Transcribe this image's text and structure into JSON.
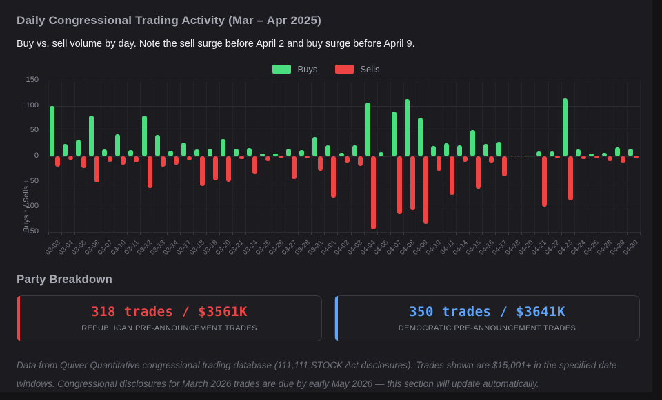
{
  "header": {
    "title": "Daily Congressional Trading Activity (Mar – Apr 2025)",
    "subtitle": "Buy vs. sell volume by day. Note the sell surge before April 2 and buy surge before April 9."
  },
  "chart_data": {
    "type": "bar",
    "title": "Daily Congressional Trading Activity (Mar – Apr 2025)",
    "xlabel": "",
    "ylabel": "Buys ↑ / Sells ↓",
    "ylim": [
      -150,
      150
    ],
    "yticks": [
      150,
      100,
      50,
      0,
      -50,
      -100,
      -150
    ],
    "grid": true,
    "legend_position": "top-center",
    "categories": [
      "03-03",
      "03-04",
      "03-05",
      "03-06",
      "03-07",
      "03-10",
      "03-11",
      "03-12",
      "03-13",
      "03-14",
      "03-17",
      "03-18",
      "03-19",
      "03-20",
      "03-21",
      "03-24",
      "03-25",
      "03-26",
      "03-27",
      "03-28",
      "03-31",
      "04-01",
      "04-02",
      "04-03",
      "04-04",
      "04-05",
      "04-07",
      "04-08",
      "04-09",
      "04-10",
      "04-11",
      "04-14",
      "04-15",
      "04-16",
      "04-17",
      "04-18",
      "04-20",
      "04-21",
      "04-22",
      "04-23",
      "04-24",
      "04-25",
      "04-28",
      "04-29",
      "04-30"
    ],
    "series": [
      {
        "name": "Buys",
        "color": "#4ade80",
        "values": [
          100,
          24,
          33,
          81,
          14,
          44,
          12,
          80,
          42,
          11,
          27,
          14,
          15,
          34,
          15,
          17,
          6,
          5,
          15,
          12,
          38,
          22,
          7,
          22,
          107,
          8,
          88,
          113,
          77,
          20,
          26,
          22,
          52,
          24,
          28,
          2,
          2,
          9,
          10,
          115,
          13,
          5,
          7,
          18,
          15
        ]
      },
      {
        "name": "Sells",
        "color": "#ef4444",
        "values": [
          -20,
          -7,
          -23,
          -52,
          -11,
          -17,
          -12,
          -63,
          -21,
          -16,
          -8,
          -59,
          -48,
          -50,
          -5,
          -36,
          -10,
          -1,
          -45,
          -2,
          -29,
          -82,
          -13,
          -19,
          -144,
          0,
          -115,
          -107,
          -134,
          -29,
          -77,
          -11,
          -64,
          -13,
          -40,
          0,
          0,
          -99,
          -3,
          -87,
          -5,
          -2,
          -10,
          -14,
          -3
        ]
      }
    ]
  },
  "party_breakdown": {
    "heading": "Party Breakdown",
    "cards": [
      {
        "value": "318 trades / $3561K",
        "label": "REPUBLICAN PRE-ANNOUNCEMENT TRADES",
        "accent": "#ef4444"
      },
      {
        "value": "350 trades / $3641K",
        "label": "DEMOCRATIC PRE-ANNOUNCEMENT TRADES",
        "accent": "#60a5fa"
      }
    ]
  },
  "footer": {
    "note": "Data from Quiver Quantitative congressional trading database (111,111 STOCK Act disclosures). Trades shown are $15,001+ in the specified date windows. Congressional disclosures for March 2026 trades are due by early May 2026 — this section will update automatically."
  }
}
